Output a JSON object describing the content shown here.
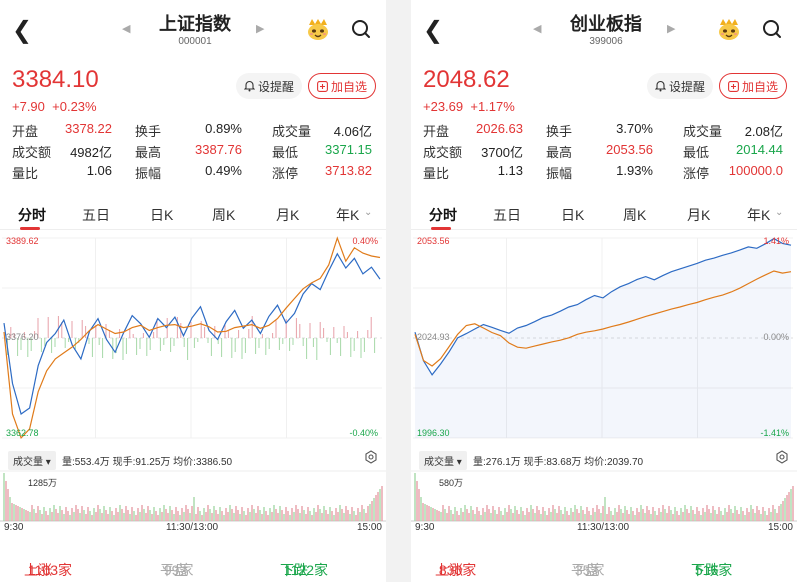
{
  "colors": {
    "up": "#e23535",
    "down": "#1aa64b",
    "index_line": "#2d6bc4",
    "avg_line": "#e07b1a",
    "bg": "#ffffff"
  },
  "panels": [
    {
      "title": "上证指数",
      "code": "000001",
      "price": "3384.10",
      "change": "+7.90",
      "change_pct": "+0.23%",
      "remind_label": "设提醒",
      "add_label": "加自选",
      "stats": [
        [
          {
            "label": "开盘",
            "value": "3378.22",
            "color": "up"
          },
          {
            "label": "换手",
            "value": "0.89%",
            "color": "none"
          },
          {
            "label": "成交量",
            "value": "4.06亿",
            "color": "none"
          }
        ],
        [
          {
            "label": "成交额",
            "value": "4982亿",
            "color": "none"
          },
          {
            "label": "最高",
            "value": "3387.76",
            "color": "up"
          },
          {
            "label": "最低",
            "value": "3371.15",
            "color": "down"
          }
        ],
        [
          {
            "label": "量比",
            "value": "1.06",
            "color": "none"
          },
          {
            "label": "振幅",
            "value": "0.49%",
            "color": "none"
          },
          {
            "label": "涨停",
            "value": "3713.82",
            "color": "up"
          }
        ]
      ],
      "tabs": [
        "分时",
        "五日",
        "日K",
        "周K",
        "月K",
        "年K"
      ],
      "chart": {
        "high_label": "3389.62",
        "low_label": "3362.78",
        "mid_label": "3376.20",
        "high_pct": "0.40%",
        "low_pct": "-0.40%"
      },
      "volume": {
        "selector": "成交量",
        "info": "量:553.4万 现手:91.25万 均价:3386.50",
        "max_label": "1285万"
      },
      "times": {
        "start": "9:30",
        "mid": "11:30/13:00",
        "end": "15:00"
      },
      "breadth": {
        "up_label": "上涨",
        "up": "1103家",
        "flat_label": "平盘",
        "flat": "99家",
        "down_label": "下跌",
        "down": "1122家"
      }
    },
    {
      "title": "创业板指",
      "code": "399006",
      "price": "2048.62",
      "change": "+23.69",
      "change_pct": "+1.17%",
      "remind_label": "设提醒",
      "add_label": "加自选",
      "stats": [
        [
          {
            "label": "开盘",
            "value": "2026.63",
            "color": "up"
          },
          {
            "label": "换手",
            "value": "3.70%",
            "color": "none"
          },
          {
            "label": "成交量",
            "value": "2.08亿",
            "color": "none"
          }
        ],
        [
          {
            "label": "成交额",
            "value": "3700亿",
            "color": "none"
          },
          {
            "label": "最高",
            "value": "2053.56",
            "color": "up"
          },
          {
            "label": "最低",
            "value": "2014.44",
            "color": "down"
          }
        ],
        [
          {
            "label": "量比",
            "value": "1.13",
            "color": "none"
          },
          {
            "label": "振幅",
            "value": "1.93%",
            "color": "none"
          },
          {
            "label": "涨停",
            "value": "100000.0",
            "color": "up"
          }
        ]
      ],
      "tabs": [
        "分时",
        "五日",
        "日K",
        "周K",
        "月K",
        "年K"
      ],
      "chart": {
        "high_label": "2053.56",
        "low_label": "1996.30",
        "mid_label": "2024.93",
        "high_pct": "1.41%",
        "low_pct": "-1.41%",
        "zero_pct": "0.00%"
      },
      "volume": {
        "selector": "成交量",
        "info": "量:276.1万 现手:83.68万 均价:2039.70",
        "max_label": "580万"
      },
      "times": {
        "start": "9:30",
        "mid": "11:30/13:00",
        "end": "15:00"
      },
      "breadth": {
        "up_label": "上涨",
        "up": "830家",
        "flat_label": "平盘",
        "flat": "35家",
        "down_label": "下跌",
        "down": "516家"
      }
    }
  ],
  "chart_data": [
    {
      "type": "line",
      "ylim": [
        3362.78,
        3389.62
      ],
      "series": [
        {
          "values": [
            3378.2,
            3370.1,
            3366.0,
            3366.8,
            3372.5,
            3375.6,
            3376.8,
            3378.6,
            3375.2,
            3373.4,
            3377.1,
            3378.8,
            3376.0,
            3374.3,
            3376.9,
            3379.2,
            3378.1,
            3376.3,
            3378.8,
            3377.6,
            3379.0,
            3376.5,
            3378.9,
            3380.4,
            3377.2,
            3376.0,
            3378.4,
            3379.9,
            3377.5,
            3378.6,
            3376.8,
            3379.1,
            3380.6,
            3378.2,
            3379.5,
            3382.1,
            3383.5,
            3382.7,
            3385.2,
            3387.5,
            3385.6,
            3386.9,
            3384.8,
            3385.7,
            3384.1
          ]
        },
        {
          "values": [
            3377.0,
            3366.0,
            3362.8,
            3364.0,
            3369.0,
            3371.8,
            3373.4,
            3374.2,
            3375.0,
            3376.0,
            3377.2,
            3378.0,
            3377.4,
            3376.8,
            3377.0,
            3377.6,
            3377.9,
            3377.2,
            3377.6,
            3377.9,
            3378.0,
            3377.6,
            3377.8,
            3378.1,
            3377.7,
            3377.0,
            3377.1,
            3377.6,
            3377.8,
            3378.0,
            3377.5,
            3377.9,
            3378.8,
            3380.2,
            3381.5,
            3382.8,
            3383.6,
            3384.2,
            3386.0,
            3389.6,
            3386.5,
            3388.3,
            3387.6,
            3387.2,
            3387.0
          ]
        }
      ]
    },
    {
      "type": "line",
      "ylim": [
        1996.3,
        2053.56
      ],
      "series": [
        {
          "values": [
            2026.6,
            2018.4,
            2014.4,
            2017.5,
            2021.0,
            2025.0,
            2026.2,
            2027.5,
            2028.8,
            2028.0,
            2027.1,
            2026.3,
            2027.8,
            2028.5,
            2029.6,
            2030.8,
            2031.5,
            2032.6,
            2033.8,
            2034.5,
            2035.9,
            2037.1,
            2036.4,
            2038.2,
            2039.6,
            2040.5,
            2041.7,
            2042.5,
            2041.6,
            2042.8,
            2043.9,
            2044.7,
            2045.5,
            2046.3,
            2047.2,
            2047.8,
            2048.6,
            2049.3,
            2050.1,
            2051.0,
            2050.6,
            2051.9,
            2053.4,
            2052.0,
            2051.5
          ]
        },
        {
          "values": [
            2026.0,
            2018.5,
            2016.9,
            2019.0,
            2022.5,
            2026.0,
            2028.5,
            2029.0,
            2027.8,
            2026.5,
            2025.6,
            2023.5,
            2022.3,
            2022.0,
            2022.6,
            2023.2,
            2023.8,
            2024.3,
            2025.0,
            2026.0,
            2026.6,
            2027.0,
            2027.5,
            2028.2,
            2028.8,
            2029.5,
            2030.3,
            2031.1,
            2031.8,
            2032.5,
            2033.2,
            2033.8,
            2034.5,
            2035.1,
            2035.9,
            2036.6,
            2037.2,
            2038.1,
            2039.2,
            2040.5,
            2041.8,
            2043.0,
            2044.1,
            2043.5,
            2043.9
          ]
        }
      ]
    }
  ]
}
